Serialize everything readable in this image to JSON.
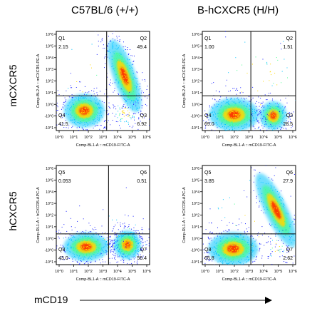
{
  "columns": [
    "C57BL/6 (+/+)",
    "B-hCXCR5 (H/H)"
  ],
  "rows": [
    "mCXCR5",
    "hCXCR5"
  ],
  "x_axis_title": "mCD19",
  "tick_labels": [
    "10^0",
    "10^1",
    "10^2",
    "10^3",
    "10^4",
    "10^5",
    "10^6"
  ],
  "y_tick_labels": [
    "10^6",
    "10^5",
    "10^4",
    "10^3",
    "10^2",
    "10^1",
    "10^0",
    "-10^0",
    "-10^1"
  ],
  "colors": {
    "high": "#ff2a00",
    "mid": "#ffd800",
    "low": "#00c4ff",
    "sparse": "#1a22ff",
    "gate": "#000000"
  },
  "chart_data": [
    {
      "type": "scatter",
      "sample": "C57BL/6 (+/+)",
      "stain": "mCXCR5",
      "xlabel": "Comp-BL1-A :: mCD19-FITC-A",
      "ylabel": "Comp-BL2-A :: mCXCR5-PE-A",
      "quadrants": {
        "Q1": "2.15",
        "Q2": "49.4",
        "Q3": "6.92",
        "Q4": "41.5"
      }
    },
    {
      "type": "scatter",
      "sample": "B-hCXCR5 (H/H)",
      "stain": "mCXCR5",
      "xlabel": "Comp-BL1-A :: mCD19-FITC-A",
      "ylabel": "Comp-BL2-A :: mCXCR5-PE-A",
      "quadrants": {
        "Q1": "1.00",
        "Q2": "1.51",
        "Q3": "28.5",
        "Q4": "69.0"
      }
    },
    {
      "type": "scatter",
      "sample": "C57BL/6 (+/+)",
      "stain": "hCXCR5",
      "xlabel": "Comp-BL1-A :: mCD19-FITC-A",
      "ylabel": "Comp-RL1-A :: hCXCR5-APC-A",
      "quadrants": {
        "Q5": "0.053",
        "Q6": "0.51",
        "Q7": "56.4",
        "Q8": "43.0"
      }
    },
    {
      "type": "scatter",
      "sample": "B-hCXCR5 (H/H)",
      "stain": "hCXCR5",
      "xlabel": "Comp-BL1-A :: mCD19-FITC-A",
      "ylabel": "Comp-RL1-A :: hCXCR5-APC-A",
      "quadrants": {
        "Q5": "3.85",
        "Q6": "27.9",
        "Q7": "2.62",
        "Q8": "65.8"
      }
    }
  ]
}
